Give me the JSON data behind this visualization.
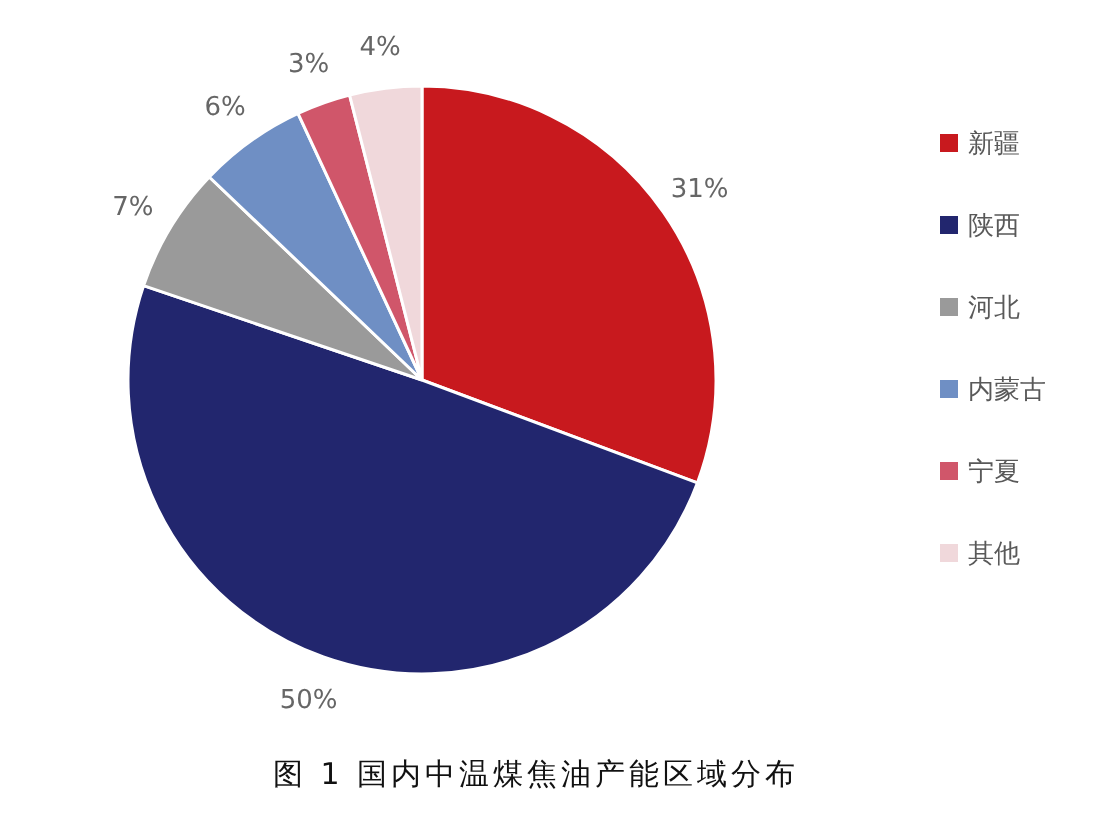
{
  "chart_data": {
    "type": "pie",
    "title": "图 1  国内中温煤焦油产能区域分布",
    "categories": [
      "新疆",
      "陕西",
      "河北",
      "内蒙古",
      "宁夏",
      "其他"
    ],
    "values": [
      31,
      50,
      7,
      6,
      3,
      4
    ],
    "colors": [
      "#c8191e",
      "#22266e",
      "#9a9a9a",
      "#6f8fc4",
      "#d0566a",
      "#f0d8db"
    ],
    "value_labels": [
      "31%",
      "50%",
      "7%",
      "6%",
      "3%",
      "4%"
    ],
    "legend": "right"
  }
}
